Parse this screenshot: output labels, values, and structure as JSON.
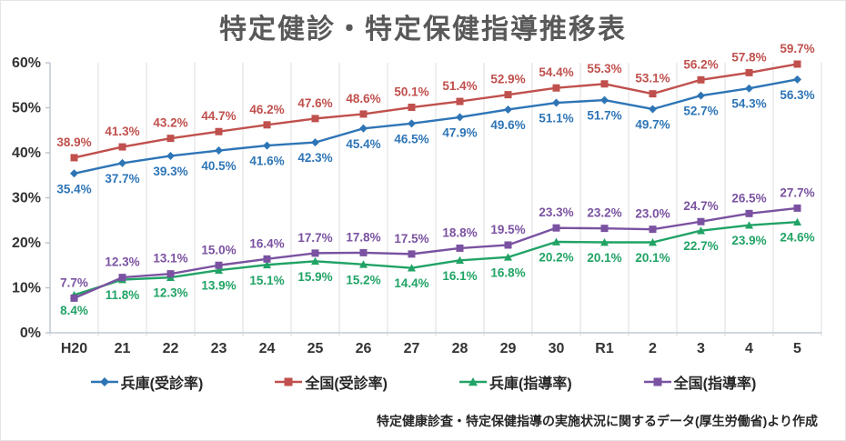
{
  "title": "特定健診・特定保健指導推移表",
  "source_note": "特定健康診査・特定保健指導の実施状況に関するデータ(厚生労働省)より作成",
  "colors": {
    "title": "#595959",
    "axis_line": "#b3c0cc",
    "gridline": "#dcdcdc",
    "axis_text": "#333333"
  },
  "chart_data": {
    "type": "line",
    "categories": [
      "H20",
      "21",
      "22",
      "23",
      "24",
      "25",
      "26",
      "27",
      "28",
      "29",
      "30",
      "R1",
      "2",
      "3",
      "4",
      "5"
    ],
    "series": [
      {
        "name": "兵庫(受診率)",
        "color": "#2e75b6",
        "marker": "diamond",
        "label_position": "below",
        "values": [
          35.4,
          37.7,
          39.3,
          40.5,
          41.6,
          42.3,
          45.4,
          46.5,
          47.9,
          49.6,
          51.1,
          51.7,
          49.7,
          52.7,
          54.3,
          56.3
        ]
      },
      {
        "name": "全国(受診率)",
        "color": "#c0504d",
        "marker": "square",
        "label_position": "above",
        "values": [
          38.9,
          41.3,
          43.2,
          44.7,
          46.2,
          47.6,
          48.6,
          50.1,
          51.4,
          52.9,
          54.4,
          55.3,
          53.1,
          56.2,
          57.8,
          59.7
        ]
      },
      {
        "name": "兵庫(指導率)",
        "color": "#21a366",
        "marker": "triangle",
        "label_position": "below",
        "values": [
          8.4,
          11.8,
          12.3,
          13.9,
          15.1,
          15.9,
          15.2,
          14.4,
          16.1,
          16.8,
          20.2,
          20.1,
          20.1,
          22.7,
          23.9,
          24.6
        ]
      },
      {
        "name": "全国(指導率)",
        "color": "#7a52a1",
        "marker": "square",
        "label_position": "above",
        "values": [
          7.7,
          12.3,
          13.1,
          15.0,
          16.4,
          17.7,
          17.8,
          17.5,
          18.8,
          19.5,
          23.3,
          23.2,
          23.0,
          24.7,
          26.5,
          27.7
        ]
      }
    ],
    "ylim": [
      0,
      60
    ],
    "y_ticks": [
      "0%",
      "10%",
      "20%",
      "30%",
      "40%",
      "50%",
      "60%"
    ],
    "value_suffix": "%",
    "grid": "vertical-only",
    "legend_position": "bottom"
  }
}
